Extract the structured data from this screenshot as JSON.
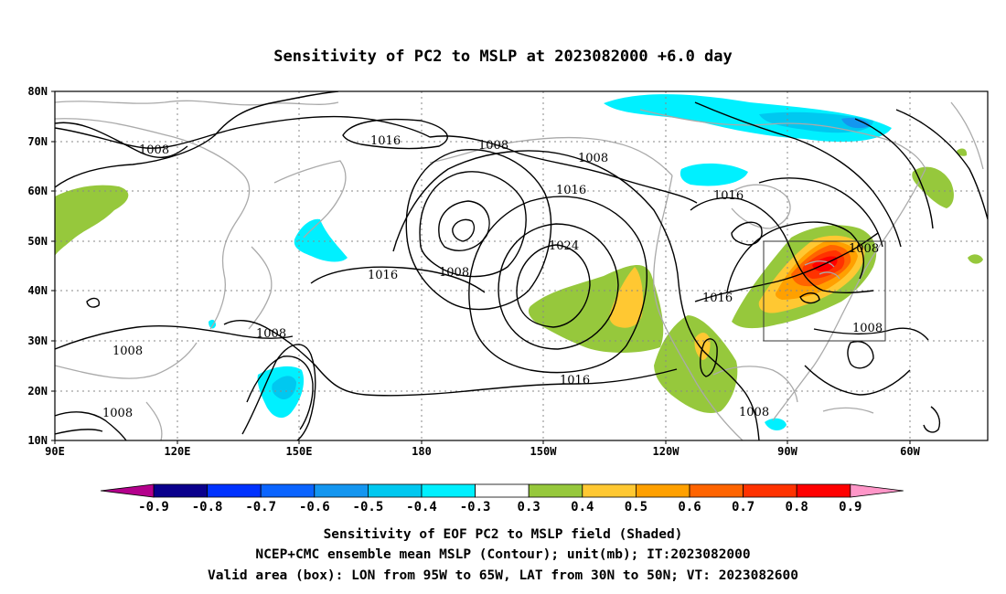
{
  "title": "Sensitivity of PC2 to MSLP at 2023082000 +6.0 day",
  "lat_labels": [
    "80N",
    "70N",
    "60N",
    "50N",
    "40N",
    "30N",
    "20N",
    "10N"
  ],
  "lon_labels": [
    "90E",
    "120E",
    "150E",
    "180",
    "150W",
    "120W",
    "90W",
    "60W"
  ],
  "contour_labels": {
    "c1": "1008",
    "c2": "1016",
    "c3": "1008",
    "c4": "1008",
    "c5": "1016",
    "c6": "1024",
    "c7": "1008",
    "c8": "1016",
    "c9": "1016",
    "c10": "1008",
    "c11": "1016",
    "c12": "1008",
    "c13": "1008",
    "c14": "1008",
    "c15": "1016",
    "c16": "1008",
    "c17": "1008"
  },
  "colorbar": {
    "ticks": [
      "-0.9",
      "-0.8",
      "-0.7",
      "-0.6",
      "-0.5",
      "-0.4",
      "-0.3",
      "0.3",
      "0.4",
      "0.5",
      "0.6",
      "0.7",
      "0.8",
      "0.9"
    ],
    "colors": [
      "#0a008c",
      "#0032ff",
      "#0a64ff",
      "#1496f0",
      "#00c8f0",
      "#00f0ff",
      "#ffffff",
      "#96c83c",
      "#ffc832",
      "#ffa000",
      "#ff6400",
      "#ff3200",
      "#ff0000"
    ],
    "low_arrow_color": "#b4008c",
    "high_arrow_color": "#ff96c8"
  },
  "captions": {
    "line1": "Sensitivity of EOF PC2 to MSLP field (Shaded)",
    "line2": "NCEP+CMC ensemble mean MSLP (Contour); unit(mb); IT:2023082000",
    "line3": "Valid area (box): LON from 95W to 65W, LAT from 30N to 50N; VT: 2023082600"
  },
  "valid_area": {
    "lon_west": "95W",
    "lon_east": "65W",
    "lat_south": "30N",
    "lat_north": "50N"
  },
  "palette": {
    "contour": "#000000",
    "coast": "#aaaaaa",
    "grid": "#888888"
  }
}
